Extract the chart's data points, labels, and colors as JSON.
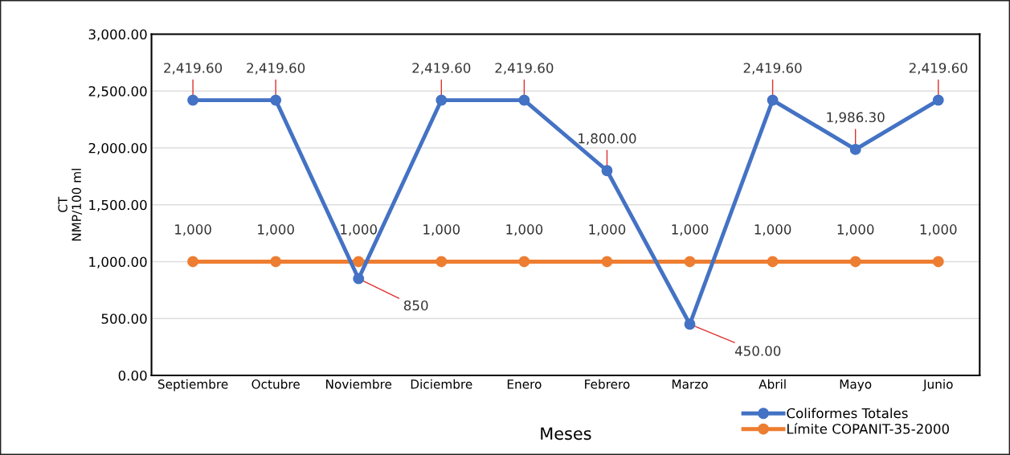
{
  "chart_data": {
    "type": "line",
    "ylabel": "CT\nNMP/100 ml",
    "xlabel": "Meses",
    "categories": [
      "Septiembre",
      "Octubre",
      "Noviembre",
      "Diciembre",
      "Enero",
      "Febrero",
      "Marzo",
      "Abril",
      "Mayo",
      "Junio"
    ],
    "series": [
      {
        "name": "Coliformes Totales",
        "color": "#4472c4",
        "values": [
          2419.6,
          2419.6,
          850,
          2419.6,
          2419.6,
          1800,
          450,
          2419.6,
          1986.3,
          2419.6
        ],
        "value_labels": [
          "2,419.60",
          "2,419.60",
          "850",
          "2,419.60",
          "2,419.60",
          "1,800.00",
          "450.00",
          "2,419.60",
          "1,986.30",
          "2,419.60"
        ]
      },
      {
        "name": "Límite COPANIT-35-2000",
        "color": "#ed7d31",
        "values": [
          1000,
          1000,
          1000,
          1000,
          1000,
          1000,
          1000,
          1000,
          1000,
          1000
        ],
        "value_labels": [
          "1,000",
          "1,000",
          "1,000",
          "1,000",
          "1,000",
          "1,000",
          "1,000",
          "1,000",
          "1,000",
          "1,000"
        ]
      }
    ],
    "ylim": [
      0,
      3000
    ],
    "yticks": [
      {
        "value": 0,
        "label": "0.00"
      },
      {
        "value": 500,
        "label": "500.00"
      },
      {
        "value": 1000,
        "label": "1,000.00"
      },
      {
        "value": 1500,
        "label": "1,500.00"
      },
      {
        "value": 2000,
        "label": "2,000.00"
      },
      {
        "value": 2500,
        "label": "2,500.00"
      },
      {
        "value": 3000,
        "label": "3,000.00"
      }
    ],
    "grid": "y",
    "legend": "bottom right",
    "marker": "circle",
    "line_style": "solid"
  }
}
